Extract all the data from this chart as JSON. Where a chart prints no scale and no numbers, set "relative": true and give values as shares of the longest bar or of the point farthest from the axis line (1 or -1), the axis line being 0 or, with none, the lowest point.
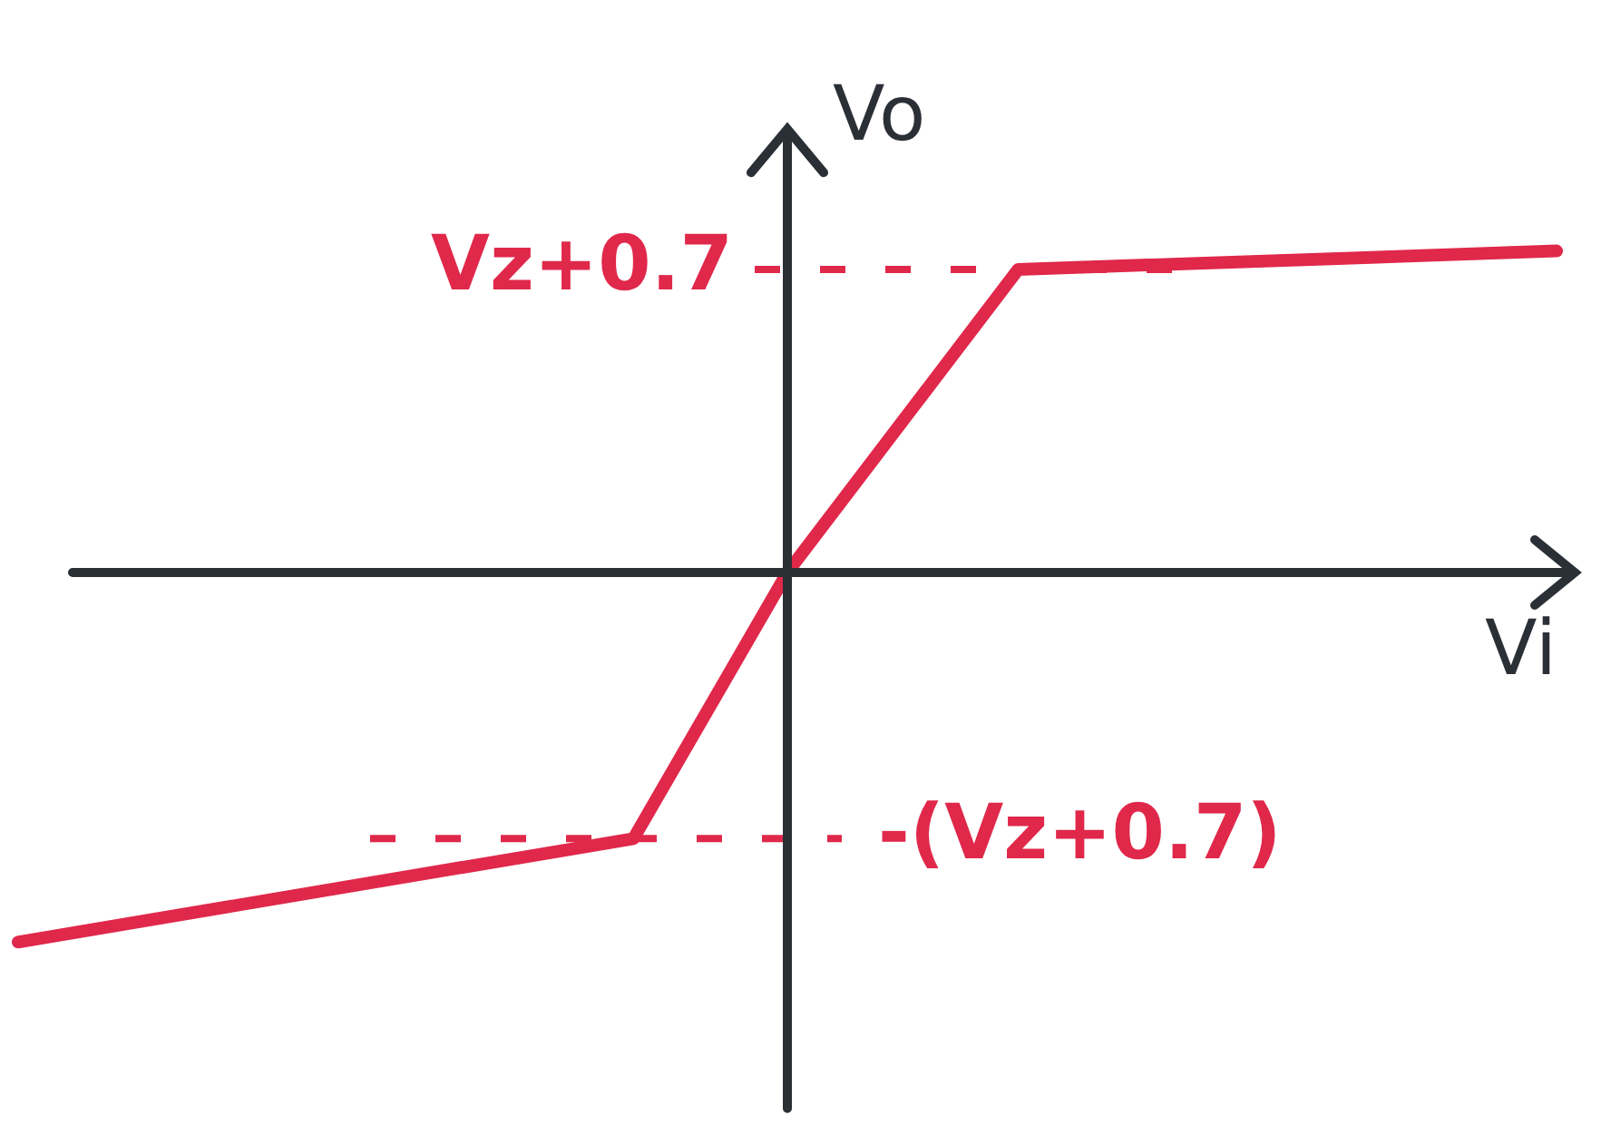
{
  "chart_data": {
    "type": "line",
    "relative": true,
    "xlabel": "Vi",
    "ylabel": "Vo",
    "categories": [
      null,
      null,
      null,
      null,
      null,
      null,
      null,
      null,
      null,
      null,
      null,
      null,
      null,
      null,
      null,
      null,
      null,
      null,
      null,
      null,
      null
    ],
    "series": [
      {
        "color": "#e0284a",
        "values": [
          -1,
          null,
          null,
          null,
          null,
          null,
          null,
          null,
          -0.72,
          null,
          0,
          null,
          null,
          0.82,
          null,
          null,
          null,
          null,
          null,
          null,
          0.87
        ]
      }
    ],
    "ref_lines": [
      {
        "axis": "y",
        "value": 0.82,
        "label": "Vz+0.7",
        "color": "#e0284a",
        "line_style": "dashed"
      },
      {
        "axis": "y",
        "value": -0.72,
        "label": "-(Vz+0.7)",
        "color": "#e0284a",
        "line_style": "dashed"
      }
    ],
    "legend": false,
    "marker": "none",
    "line_style": "solid"
  }
}
